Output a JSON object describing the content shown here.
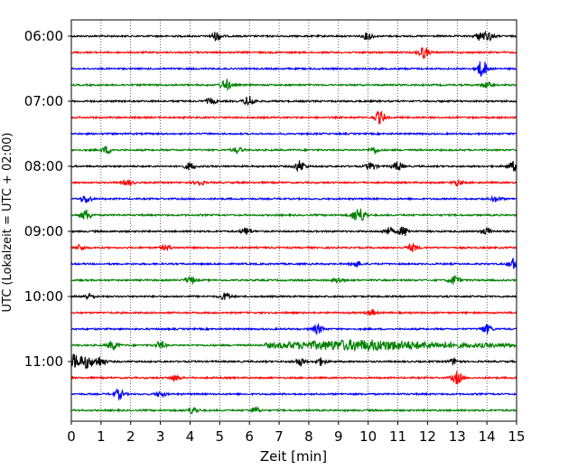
{
  "chart_data": {
    "type": "line",
    "title": "",
    "xlabel": "Zeit  [min]",
    "ylabel": "UTC (Lokalzeit = UTC + 02:00)",
    "xlim": [
      0,
      15
    ],
    "x_ticks": [
      "0",
      "1",
      "2",
      "3",
      "4",
      "5",
      "6",
      "7",
      "8",
      "9",
      "10",
      "11",
      "12",
      "13",
      "14",
      "15"
    ],
    "y_tick_labels": [
      "06:00",
      "07:00",
      "08:00",
      "09:00",
      "10:00",
      "11:00"
    ],
    "grid": "vertical dotted",
    "trace_colors": [
      "#000000",
      "#ff0000",
      "#0000ff",
      "#008000"
    ],
    "traces": [
      {
        "start": "06:00",
        "events": [
          [
            4.9,
            5
          ],
          [
            10.0,
            4
          ],
          [
            13.8,
            5
          ],
          [
            14.1,
            4
          ]
        ]
      },
      {
        "start": "06:15",
        "events": [
          [
            11.8,
            3
          ],
          [
            11.9,
            4
          ]
        ]
      },
      {
        "start": "06:30",
        "events": [
          [
            13.8,
            6
          ],
          [
            13.9,
            4
          ]
        ]
      },
      {
        "start": "06:45",
        "events": [
          [
            5.2,
            6
          ],
          [
            14.0,
            3
          ]
        ]
      },
      {
        "start": "07:00",
        "events": [
          [
            6.0,
            6
          ],
          [
            4.7,
            3
          ]
        ]
      },
      {
        "start": "07:15",
        "events": [
          [
            10.4,
            7
          ]
        ]
      },
      {
        "start": "07:30",
        "events": []
      },
      {
        "start": "07:45",
        "events": [
          [
            1.2,
            4
          ],
          [
            5.6,
            3
          ],
          [
            10.2,
            3
          ]
        ]
      },
      {
        "start": "08:00",
        "events": [
          [
            7.7,
            6
          ],
          [
            4.0,
            4
          ],
          [
            10.1,
            4
          ],
          [
            11.0,
            5
          ],
          [
            14.9,
            5
          ]
        ]
      },
      {
        "start": "08:15",
        "events": [
          [
            1.9,
            3
          ],
          [
            4.3,
            3
          ],
          [
            13.0,
            3
          ]
        ]
      },
      {
        "start": "08:30",
        "events": [
          [
            0.5,
            4
          ],
          [
            14.3,
            3
          ]
        ]
      },
      {
        "start": "08:45",
        "events": [
          [
            0.5,
            6
          ],
          [
            9.6,
            6
          ],
          [
            9.8,
            5
          ]
        ]
      },
      {
        "start": "09:00",
        "events": [
          [
            5.9,
            4
          ],
          [
            10.7,
            4
          ],
          [
            11.2,
            5
          ],
          [
            14.0,
            4
          ]
        ]
      },
      {
        "start": "09:15",
        "events": [
          [
            3.2,
            3
          ],
          [
            11.5,
            4
          ],
          [
            0.3,
            3
          ]
        ]
      },
      {
        "start": "09:30",
        "events": [
          [
            14.9,
            6
          ],
          [
            9.6,
            3
          ]
        ]
      },
      {
        "start": "09:45",
        "events": [
          [
            4.0,
            4
          ],
          [
            12.9,
            5
          ],
          [
            9.0,
            3
          ]
        ]
      },
      {
        "start": "10:00",
        "events": [
          [
            5.2,
            4
          ],
          [
            0.6,
            3
          ]
        ]
      },
      {
        "start": "10:15",
        "events": [
          [
            10.1,
            3
          ]
        ]
      },
      {
        "start": "10:30",
        "events": [
          [
            8.3,
            5
          ],
          [
            14.0,
            5
          ]
        ]
      },
      {
        "start": "10:45",
        "events": [
          [
            1.4,
            5
          ],
          [
            3.0,
            4
          ]
        ]
      },
      {
        "start": "11:00",
        "events": [
          [
            0.1,
            6
          ],
          [
            0.5,
            5
          ],
          [
            1.0,
            4
          ],
          [
            7.7,
            4
          ],
          [
            8.4,
            4
          ],
          [
            12.9,
            3
          ]
        ]
      },
      {
        "start": "11:15",
        "events": [
          [
            13.0,
            7
          ],
          [
            3.5,
            3
          ]
        ]
      },
      {
        "start": "11:30",
        "events": [
          [
            1.6,
            5
          ],
          [
            3.0,
            3
          ]
        ]
      },
      {
        "start": "11:45",
        "events": [
          [
            4.1,
            4
          ],
          [
            6.2,
            3
          ]
        ]
      }
    ]
  }
}
